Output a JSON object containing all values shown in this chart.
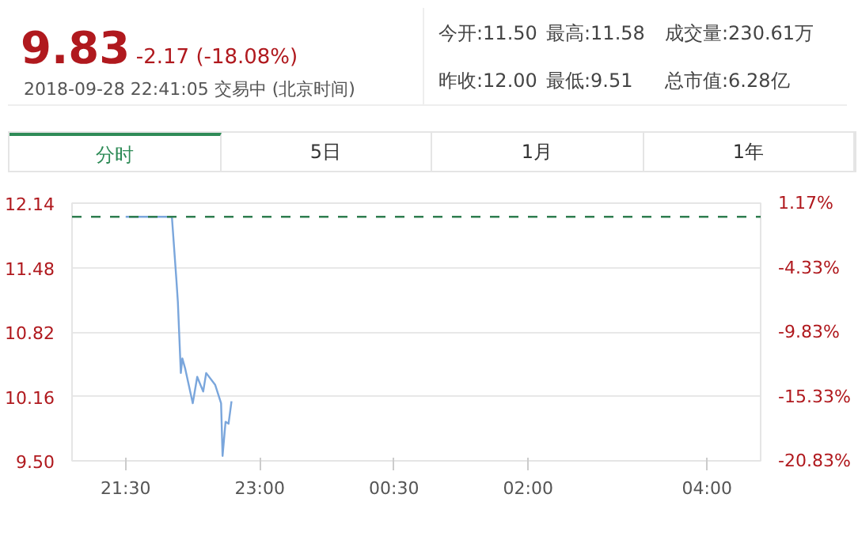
{
  "chart_data": {
    "type": "line",
    "title": "9.83",
    "subtitle": "-2.17 (-18.08%)",
    "annotations": [
      "2018-09-28 22:41:05  交易中  (北京时间)",
      "今开:11.50",
      "最高:11.58",
      "成交量:230.61万",
      "昨收:12.00",
      "最低:9.51",
      "总市值:6.28亿",
      "分时",
      "5日",
      "1月",
      "1年"
    ],
    "x": [
      "2018-09-28T21:30",
      "2018-09-28T22:01",
      "2018-09-28T22:04",
      "2018-09-28T22:05",
      "2018-09-28T22:07",
      "2018-09-28T22:08",
      "2018-09-28T22:10",
      "2018-09-28T22:15",
      "2018-09-28T22:18",
      "2018-09-28T22:22",
      "2018-09-28T22:24",
      "2018-09-28T22:30",
      "2018-09-28T22:34",
      "2018-09-28T22:35",
      "2018-09-28T22:37",
      "2018-09-28T22:39",
      "2018-09-28T22:41"
    ],
    "series": [
      {
        "color": "#7aa6dc",
        "values": [
          12.0,
          12.0,
          11.36,
          11.13,
          10.4,
          10.55,
          10.44,
          10.09,
          10.36,
          10.21,
          10.4,
          10.28,
          10.09,
          9.55,
          9.9,
          9.88,
          10.11
        ]
      }
    ],
    "xlim": [
      "2018-09-28T20:54",
      "2018-09-29T04:36"
    ],
    "xticks": [
      {
        "value": "2018-09-28T21:30",
        "label": "21:30"
      },
      {
        "value": "2018-09-28T23:00",
        "label": "23:00"
      },
      {
        "value": "2018-09-29T00:30",
        "label": "00:30"
      },
      {
        "value": "2018-09-29T02:00",
        "label": "02:00"
      },
      {
        "value": "2018-09-29T04:00",
        "label": "04:00"
      }
    ],
    "ylim": [
      9.5,
      12.14
    ],
    "yticks": [
      {
        "value": 9.5,
        "label": "9.50"
      },
      10.16,
      10.82,
      11.48,
      12.14
    ],
    "y2lim": [
      -20.83,
      1.17
    ],
    "y2ticks": [
      {
        "value": -20.83,
        "label": "-20.83%"
      },
      {
        "value": -15.33,
        "label": "-15.33%"
      },
      {
        "value": -9.83,
        "label": "-9.83%"
      },
      {
        "value": -4.33,
        "label": "-4.33%"
      },
      {
        "value": 1.17,
        "label": "1.17%"
      }
    ],
    "ref_lines": [
      {
        "axis": "y",
        "value": 12.0,
        "color": "#2e7d4f",
        "line_style": "dashed"
      }
    ],
    "grid": "y",
    "line_style": "solid",
    "marker": "none"
  }
}
